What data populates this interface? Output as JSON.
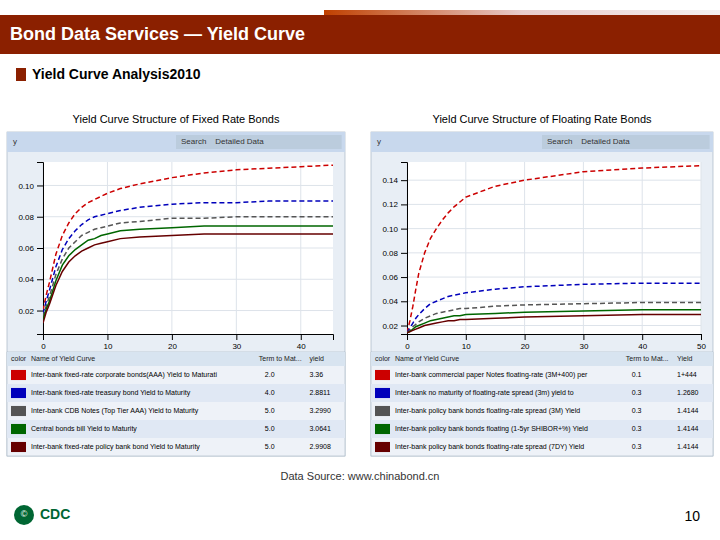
{
  "title": "Bond Data Services — Yield Curve",
  "subtitle": "Yield Curve Analysis2010",
  "source": "Data Source: www.chinabond.cn",
  "annotations": [
    "©",
    "CDC",
    "10"
  ],
  "chart_data": [
    {
      "type": "line",
      "title": "Yield Curve Structure of Fixed Rate Bonds",
      "annotations": [
        "y",
        "Search    Detailed Data"
      ],
      "table_columns": [
        "color",
        "Name of Yield Curve",
        "Term to Mat...",
        "yield"
      ],
      "x": [
        0,
        0.5,
        1,
        2,
        3,
        4,
        5,
        6,
        7,
        8,
        9,
        10,
        12,
        15,
        20,
        25,
        30,
        35,
        40,
        45
      ],
      "series": [
        {
          "name": "Inter-bank fixed-rate corporate bonds(AAA) Yield to Maturati",
          "color": "#CC0000",
          "line_style": "dashed",
          "term": "2.0",
          "yield": "3.36",
          "values": [
            0.02,
            0.03,
            0.038,
            0.056,
            0.068,
            0.076,
            0.082,
            0.086,
            0.089,
            0.091,
            0.093,
            0.095,
            0.098,
            0.101,
            0.105,
            0.108,
            0.11,
            0.111,
            0.112,
            0.113
          ]
        },
        {
          "name": "Inter-bank fixed-rate treasury bond Yield to Maturity",
          "color": "#0000BB",
          "line_style": "dashed",
          "term": "4.0",
          "yield": "2.8811",
          "values": [
            0.018,
            0.026,
            0.033,
            0.048,
            0.059,
            0.066,
            0.071,
            0.075,
            0.078,
            0.08,
            0.081,
            0.082,
            0.084,
            0.086,
            0.088,
            0.089,
            0.089,
            0.09,
            0.09,
            0.09
          ]
        },
        {
          "name": "Inter-bank CDB Notes (Top Tier AAA) Yield to Maturity",
          "color": "#555555",
          "line_style": "dashed",
          "term": "5.0",
          "yield": "3.2990",
          "values": [
            0.016,
            0.023,
            0.029,
            0.043,
            0.053,
            0.06,
            0.064,
            0.068,
            0.07,
            0.072,
            0.073,
            0.074,
            0.076,
            0.077,
            0.079,
            0.079,
            0.08,
            0.08,
            0.08,
            0.08
          ]
        },
        {
          "name": "Central bonds bill Yield to Maturity",
          "color": "#006600",
          "line_style": "solid",
          "term": "5.0",
          "yield": "3.0641",
          "values": [
            0.014,
            0.021,
            0.026,
            0.039,
            0.049,
            0.055,
            0.059,
            0.062,
            0.065,
            0.066,
            0.068,
            0.069,
            0.071,
            0.072,
            0.073,
            0.074,
            0.074,
            0.074,
            0.074,
            0.074
          ]
        },
        {
          "name": "Inter-bank fixed-rate policy bank bond Yield to Maturity",
          "color": "#660000",
          "line_style": "solid",
          "term": "5.0",
          "yield": "2.9908",
          "values": [
            0.012,
            0.019,
            0.024,
            0.036,
            0.045,
            0.051,
            0.055,
            0.058,
            0.06,
            0.062,
            0.063,
            0.064,
            0.066,
            0.067,
            0.068,
            0.069,
            0.069,
            0.069,
            0.069,
            0.069
          ]
        }
      ],
      "xlim": [
        0,
        45
      ],
      "xticks": [
        0,
        10,
        20,
        30,
        40
      ],
      "ylim": [
        0.005,
        0.115
      ],
      "yticks": [
        0.02,
        0.04,
        0.06,
        0.08,
        {
          "value": 0.1,
          "label": "0.10"
        }
      ],
      "grid": true
    },
    {
      "type": "line",
      "title": "Yield Curve Structure of Floating Rate Bonds",
      "annotations": [
        "y",
        "Search    Detailed Data"
      ],
      "table_columns": [
        "color",
        "Name of Yield Curve",
        "Term to Mat...",
        "Yield"
      ],
      "x": [
        0,
        0.5,
        1,
        1.5,
        2,
        3,
        4,
        5,
        6,
        7,
        8,
        9,
        10,
        15,
        20,
        30,
        40,
        50
      ],
      "series": [
        {
          "name": "Inter-bank commercial paper Notes floating-rate (3M+400) per",
          "color": "#CC0000",
          "line_style": "dashed",
          "term": "0.1",
          "yield": "1+444",
          "values": [
            0.014,
            0.024,
            0.036,
            0.05,
            0.063,
            0.08,
            0.092,
            0.1,
            0.107,
            0.113,
            0.118,
            0.122,
            0.126,
            0.135,
            0.14,
            0.147,
            0.15,
            0.152
          ]
        },
        {
          "name": "Inter-bank no maturity of floating-rate spread (3m) yield to",
          "color": "#0000BB",
          "line_style": "dashed",
          "term": "0.3",
          "yield": "1.2680",
          "values": [
            0.014,
            0.018,
            0.022,
            0.026,
            0.029,
            0.034,
            0.038,
            0.04,
            0.042,
            0.044,
            0.045,
            0.046,
            0.047,
            0.05,
            0.052,
            0.054,
            0.055,
            0.055
          ]
        },
        {
          "name": "Inter-bank policy bank bonds floating-rate spread (3M) Yield",
          "color": "#555555",
          "line_style": "dashed",
          "term": "0.3",
          "yield": "1.4144",
          "values": [
            0.014,
            0.016,
            0.019,
            0.021,
            0.023,
            0.026,
            0.028,
            0.03,
            0.031,
            0.032,
            0.033,
            0.034,
            0.034,
            0.036,
            0.037,
            0.038,
            0.039,
            0.039
          ]
        },
        {
          "name": "Inter-bank policy bank bonds floating (1-5yr SHIBOR+%) Yield",
          "color": "#006600",
          "line_style": "solid",
          "term": "0.3",
          "yield": "1.4144",
          "values": [
            0.014,
            0.015,
            0.017,
            0.019,
            0.02,
            0.022,
            0.024,
            0.025,
            0.026,
            0.027,
            0.028,
            0.028,
            0.029,
            0.03,
            0.031,
            0.032,
            0.033,
            0.033
          ]
        },
        {
          "name": "Inter-bank policy bank bonds floating-rate spread (7DY) Yield",
          "color": "#660000",
          "line_style": "solid",
          "term": "0.3",
          "yield": "1.4144",
          "values": [
            0.014,
            0.015,
            0.016,
            0.017,
            0.018,
            0.02,
            0.021,
            0.022,
            0.023,
            0.024,
            0.024,
            0.025,
            0.025,
            0.026,
            0.027,
            0.028,
            0.029,
            0.029
          ]
        }
      ],
      "xlim": [
        0,
        50
      ],
      "xticks": [
        0,
        10,
        20,
        30,
        40,
        50
      ],
      "ylim": [
        0.013,
        0.155
      ],
      "yticks": [
        0.02,
        0.04,
        0.06,
        0.08,
        {
          "value": 0.1,
          "label": "0.10"
        },
        0.12,
        0.14
      ],
      "grid": true
    }
  ]
}
